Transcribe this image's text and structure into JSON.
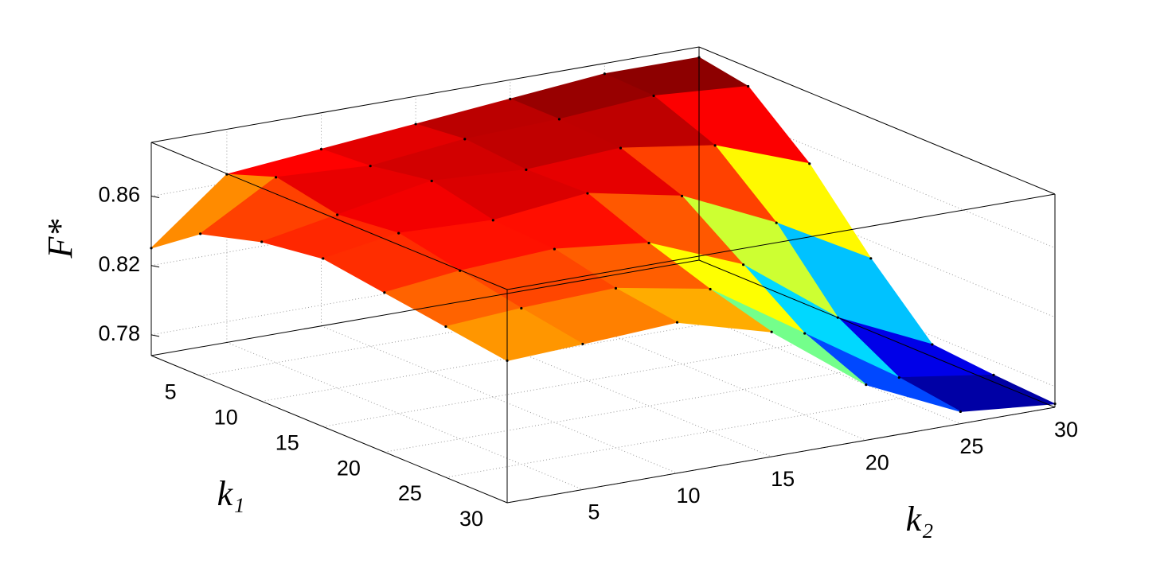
{
  "chart_data": {
    "type": "surface",
    "xlabel": "k₁",
    "ylabel": "k₂",
    "zlabel": "F*",
    "x": [
      1,
      5,
      10,
      15,
      20,
      25,
      30
    ],
    "y": [
      1,
      5,
      10,
      15,
      20,
      25,
      30
    ],
    "z": [
      [
        0.83,
        0.865,
        0.87,
        0.875,
        0.88,
        0.885,
        0.885
      ],
      [
        0.85,
        0.875,
        0.872,
        0.878,
        0.88,
        0.884,
        0.88
      ],
      [
        0.86,
        0.868,
        0.878,
        0.875,
        0.878,
        0.87,
        0.85
      ],
      [
        0.865,
        0.872,
        0.87,
        0.876,
        0.865,
        0.84,
        0.81
      ],
      [
        0.86,
        0.865,
        0.868,
        0.862,
        0.84,
        0.8,
        0.775
      ],
      [
        0.855,
        0.858,
        0.86,
        0.85,
        0.815,
        0.78,
        0.772
      ],
      [
        0.85,
        0.852,
        0.855,
        0.84,
        0.8,
        0.775,
        0.77
      ]
    ],
    "xlim": [
      1,
      30
    ],
    "ylim": [
      1,
      30
    ],
    "zlim": [
      0.768,
      0.891
    ],
    "xticks": [
      5,
      10,
      15,
      20,
      25,
      30
    ],
    "yticks": [
      5,
      10,
      15,
      20,
      25,
      30
    ],
    "zticks": [
      0.78,
      0.82,
      0.86
    ],
    "colormap": "jet",
    "grid": true
  }
}
